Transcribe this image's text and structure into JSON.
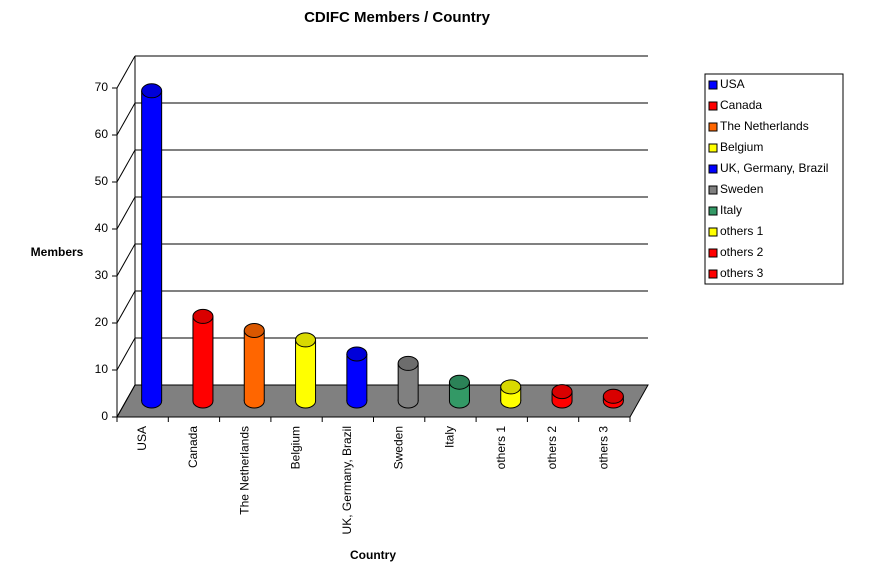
{
  "chart_data": {
    "type": "bar3d",
    "title": "CDIFC Members / Country",
    "x_label": "Country",
    "y_label": "Members",
    "categories": [
      "USA",
      "Canada",
      "The Netherlands",
      "Belgium",
      "UK, Germany, Brazil",
      "Sweden",
      "Italy",
      "others 1",
      "others 2",
      "others 3"
    ],
    "values": [
      66,
      18,
      15,
      13,
      10,
      8,
      4,
      3,
      2,
      1
    ],
    "colors": [
      "#0000ff",
      "#ff0000",
      "#ff6600",
      "#ffff00",
      "#0000ff",
      "#808080",
      "#339966",
      "#ffff00",
      "#ff0000",
      "#ff0000"
    ],
    "ylim": [
      0,
      70
    ],
    "yticks": [
      0,
      10,
      20,
      30,
      40,
      50,
      60,
      70
    ],
    "grid": true,
    "legend": "right"
  }
}
